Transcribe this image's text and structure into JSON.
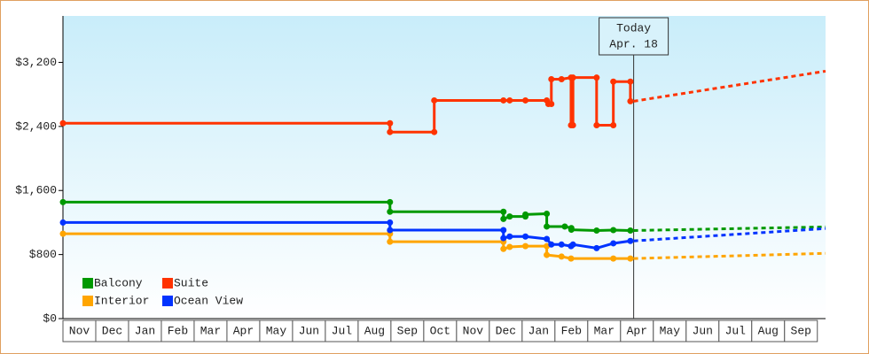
{
  "chart_data": {
    "type": "line",
    "ylim": [
      0,
      3780
    ],
    "yticks": [
      {
        "value": 0,
        "label": "$0"
      },
      {
        "value": 800,
        "label": "$800"
      },
      {
        "value": 1600,
        "label": "$1,600"
      },
      {
        "value": 2400,
        "label": "$2,400"
      },
      {
        "value": 3200,
        "label": "$3,200"
      }
    ],
    "xlim": [
      0,
      23.25
    ],
    "xticks": [
      {
        "value": 0.5,
        "label": "Nov"
      },
      {
        "value": 1.5,
        "label": "Dec"
      },
      {
        "value": 2.5,
        "label": "Jan"
      },
      {
        "value": 3.5,
        "label": "Feb"
      },
      {
        "value": 4.5,
        "label": "Mar"
      },
      {
        "value": 5.5,
        "label": "Apr"
      },
      {
        "value": 6.5,
        "label": "May"
      },
      {
        "value": 7.5,
        "label": "Jun"
      },
      {
        "value": 8.5,
        "label": "Jul"
      },
      {
        "value": 9.5,
        "label": "Aug"
      },
      {
        "value": 10.5,
        "label": "Sep"
      },
      {
        "value": 11.5,
        "label": "Oct"
      },
      {
        "value": 12.5,
        "label": "Nov"
      },
      {
        "value": 13.5,
        "label": "Dec"
      },
      {
        "value": 14.5,
        "label": "Jan"
      },
      {
        "value": 15.5,
        "label": "Feb"
      },
      {
        "value": 16.5,
        "label": "Mar"
      },
      {
        "value": 17.5,
        "label": "Apr"
      },
      {
        "value": 18.5,
        "label": "May"
      },
      {
        "value": 19.5,
        "label": "Jun"
      },
      {
        "value": 20.5,
        "label": "Jul"
      },
      {
        "value": 21.5,
        "label": "Aug"
      },
      {
        "value": 22.5,
        "label": "Sep"
      }
    ],
    "annotation": {
      "x": 17.4,
      "lines": [
        "Today",
        "Apr. 18"
      ]
    },
    "series": [
      {
        "name": "Balcony",
        "color": "#009900",
        "x": [
          0,
          9.97,
          9.97,
          13.43,
          13.43,
          13.62,
          14.1,
          14.1,
          14.75,
          14.75,
          15.3,
          15.5,
          15.5,
          16.27,
          16.78,
          17.3
        ],
        "values": [
          1455,
          1455,
          1335,
          1335,
          1245,
          1275,
          1275,
          1300,
          1310,
          1150,
          1150,
          1130,
          1110,
          1100,
          1105,
          1100
        ],
        "forecast": {
          "x": [
            17.4,
            23.25
          ],
          "values": [
            1100,
            1145
          ]
        }
      },
      {
        "name": "Suite",
        "color": "#ff3300",
        "x": [
          0,
          9.97,
          9.97,
          11.32,
          11.32,
          13.43,
          13.62,
          14.1,
          14.75,
          14.8,
          14.89,
          14.89,
          15.2,
          15.49,
          15.49,
          15.55,
          15.55,
          16.27,
          16.27,
          16.78,
          16.78,
          17.3,
          17.3
        ],
        "values": [
          2440,
          2440,
          2330,
          2330,
          2725,
          2725,
          2725,
          2725,
          2725,
          2680,
          2680,
          2990,
          2990,
          3010,
          2415,
          2415,
          3010,
          3010,
          2415,
          2415,
          2960,
          2960,
          2715
        ],
        "forecast": {
          "x": [
            17.4,
            23.25
          ],
          "values": [
            2715,
            3090
          ]
        }
      },
      {
        "name": "Interior",
        "color": "#ffa500",
        "x": [
          0,
          9.97,
          9.97,
          13.43,
          13.43,
          13.62,
          14.1,
          14.75,
          14.75,
          15.2,
          15.49,
          16.78,
          17.3
        ],
        "values": [
          1060,
          1060,
          960,
          960,
          870,
          895,
          905,
          905,
          795,
          775,
          750,
          750,
          750
        ],
        "forecast": {
          "x": [
            17.4,
            23.25
          ],
          "values": [
            750,
            815
          ]
        }
      },
      {
        "name": "Ocean View",
        "color": "#0033ff",
        "x": [
          0,
          9.97,
          9.97,
          13.43,
          13.43,
          13.62,
          14.1,
          14.75,
          14.89,
          15.2,
          15.49,
          15.55,
          16.27,
          16.78,
          17.3
        ],
        "values": [
          1200,
          1200,
          1105,
          1105,
          1005,
          1025,
          1025,
          995,
          925,
          925,
          905,
          925,
          880,
          940,
          970
        ],
        "forecast": {
          "x": [
            17.4,
            23.25
          ],
          "values": [
            970,
            1125
          ]
        }
      }
    ]
  }
}
